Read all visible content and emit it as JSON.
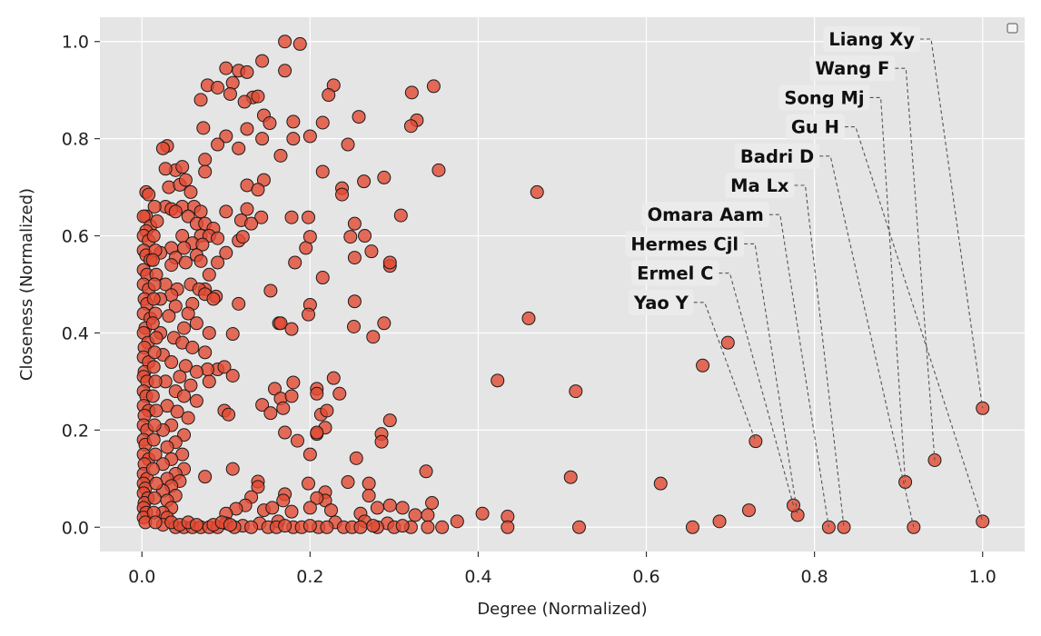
{
  "chart_data": {
    "type": "scatter",
    "title": "",
    "xlabel": "Degree (Normalized)",
    "ylabel": "Closeness (Normalized)",
    "xlim": [
      -0.05,
      1.05
    ],
    "ylim": [
      -0.05,
      1.05
    ],
    "xticks": [
      0.0,
      0.2,
      0.4,
      0.6,
      0.8,
      1.0
    ],
    "yticks": [
      0.0,
      0.2,
      0.4,
      0.6,
      0.8,
      1.0
    ],
    "xtick_labels": [
      "0.0",
      "0.2",
      "0.4",
      "0.6",
      "0.8",
      "1.0"
    ],
    "ytick_labels": [
      "0.0",
      "0.2",
      "0.4",
      "0.6",
      "0.8",
      "1.0"
    ],
    "grid": true,
    "legend": "top-right (empty)",
    "colors": {
      "background": "#e5e5e5",
      "grid": "#ffffff",
      "marker_fill": "#e24a33",
      "marker_edge": "#1a1a1a",
      "annotation_box": "#ececec",
      "leader_line": "#555555"
    },
    "annotations": [
      {
        "label": "Liang Xy",
        "x": 1.0,
        "y": 0.245
      },
      {
        "label": "Wang F",
        "x": 0.943,
        "y": 0.138
      },
      {
        "label": "Song Mj",
        "x": 0.908,
        "y": 0.093
      },
      {
        "label": "Gu H",
        "x": 1.0,
        "y": 0.012
      },
      {
        "label": "Badri D",
        "x": 0.918,
        "y": 0.0
      },
      {
        "label": "Ma Lx",
        "x": 0.835,
        "y": 0.0
      },
      {
        "label": "Omara Aam",
        "x": 0.817,
        "y": 0.0
      },
      {
        "label": "Hermes Cjl",
        "x": 0.78,
        "y": 0.025
      },
      {
        "label": "Ermel C",
        "x": 0.775,
        "y": 0.045
      },
      {
        "label": "Yao Y",
        "x": 0.73,
        "y": 0.177
      }
    ],
    "points": [
      [
        0.17,
        1.0
      ],
      [
        0.188,
        0.995
      ],
      [
        0.1,
        0.945
      ],
      [
        0.143,
        0.96
      ],
      [
        0.115,
        0.94
      ],
      [
        0.17,
        0.94
      ],
      [
        0.125,
        0.937
      ],
      [
        0.078,
        0.91
      ],
      [
        0.09,
        0.905
      ],
      [
        0.108,
        0.915
      ],
      [
        0.105,
        0.892
      ],
      [
        0.132,
        0.885
      ],
      [
        0.138,
        0.887
      ],
      [
        0.07,
        0.88
      ],
      [
        0.122,
        0.876
      ],
      [
        0.228,
        0.91
      ],
      [
        0.222,
        0.89
      ],
      [
        0.321,
        0.895
      ],
      [
        0.347,
        0.908
      ],
      [
        0.145,
        0.848
      ],
      [
        0.152,
        0.832
      ],
      [
        0.18,
        0.835
      ],
      [
        0.073,
        0.822
      ],
      [
        0.125,
        0.82
      ],
      [
        0.215,
        0.833
      ],
      [
        0.327,
        0.838
      ],
      [
        0.32,
        0.826
      ],
      [
        0.258,
        0.845
      ],
      [
        0.143,
        0.8
      ],
      [
        0.18,
        0.8
      ],
      [
        0.1,
        0.805
      ],
      [
        0.2,
        0.805
      ],
      [
        0.245,
        0.788
      ],
      [
        0.09,
        0.788
      ],
      [
        0.115,
        0.78
      ],
      [
        0.165,
        0.765
      ],
      [
        0.075,
        0.757
      ],
      [
        0.215,
        0.732
      ],
      [
        0.075,
        0.732
      ],
      [
        0.353,
        0.735
      ],
      [
        0.264,
        0.712
      ],
      [
        0.145,
        0.715
      ],
      [
        0.125,
        0.704
      ],
      [
        0.288,
        0.72
      ],
      [
        0.238,
        0.698
      ],
      [
        0.238,
        0.685
      ],
      [
        0.138,
        0.695
      ],
      [
        0.47,
        0.69
      ],
      [
        0.1,
        0.65
      ],
      [
        0.125,
        0.655
      ],
      [
        0.142,
        0.638
      ],
      [
        0.118,
        0.632
      ],
      [
        0.178,
        0.638
      ],
      [
        0.198,
        0.638
      ],
      [
        0.308,
        0.642
      ],
      [
        0.253,
        0.625
      ],
      [
        0.13,
        0.625
      ],
      [
        0.195,
        0.575
      ],
      [
        0.2,
        0.598
      ],
      [
        0.248,
        0.598
      ],
      [
        0.265,
        0.6
      ],
      [
        0.1,
        0.565
      ],
      [
        0.115,
        0.59
      ],
      [
        0.12,
        0.598
      ],
      [
        0.273,
        0.568
      ],
      [
        0.182,
        0.545
      ],
      [
        0.253,
        0.555
      ],
      [
        0.295,
        0.538
      ],
      [
        0.295,
        0.545
      ],
      [
        0.215,
        0.514
      ],
      [
        0.153,
        0.487
      ],
      [
        0.253,
        0.465
      ],
      [
        0.2,
        0.458
      ],
      [
        0.198,
        0.438
      ],
      [
        0.115,
        0.46
      ],
      [
        0.088,
        0.475
      ],
      [
        0.075,
        0.49
      ],
      [
        0.163,
        0.42
      ],
      [
        0.165,
        0.42
      ],
      [
        0.178,
        0.408
      ],
      [
        0.252,
        0.413
      ],
      [
        0.288,
        0.42
      ],
      [
        0.275,
        0.392
      ],
      [
        0.46,
        0.43
      ],
      [
        0.108,
        0.398
      ],
      [
        0.09,
        0.325
      ],
      [
        0.098,
        0.33
      ],
      [
        0.108,
        0.312
      ],
      [
        0.08,
        0.3
      ],
      [
        0.078,
        0.325
      ],
      [
        0.18,
        0.298
      ],
      [
        0.228,
        0.307
      ],
      [
        0.208,
        0.285
      ],
      [
        0.208,
        0.275
      ],
      [
        0.158,
        0.285
      ],
      [
        0.165,
        0.265
      ],
      [
        0.178,
        0.27
      ],
      [
        0.235,
        0.275
      ],
      [
        0.143,
        0.252
      ],
      [
        0.153,
        0.235
      ],
      [
        0.168,
        0.245
      ],
      [
        0.213,
        0.232
      ],
      [
        0.22,
        0.24
      ],
      [
        0.218,
        0.205
      ],
      [
        0.208,
        0.192
      ],
      [
        0.208,
        0.195
      ],
      [
        0.17,
        0.195
      ],
      [
        0.185,
        0.178
      ],
      [
        0.2,
        0.15
      ],
      [
        0.098,
        0.24
      ],
      [
        0.103,
        0.232
      ],
      [
        0.423,
        0.302
      ],
      [
        0.516,
        0.28
      ],
      [
        0.295,
        0.22
      ],
      [
        0.285,
        0.192
      ],
      [
        0.285,
        0.176
      ],
      [
        0.255,
        0.142
      ],
      [
        0.108,
        0.12
      ],
      [
        0.075,
        0.104
      ],
      [
        0.138,
        0.094
      ],
      [
        0.138,
        0.083
      ],
      [
        0.198,
        0.09
      ],
      [
        0.17,
        0.068
      ],
      [
        0.13,
        0.062
      ],
      [
        0.218,
        0.072
      ],
      [
        0.245,
        0.093
      ],
      [
        0.27,
        0.09
      ],
      [
        0.27,
        0.065
      ],
      [
        0.338,
        0.115
      ],
      [
        0.51,
        0.103
      ],
      [
        0.617,
        0.09
      ],
      [
        0.295,
        0.045
      ],
      [
        0.31,
        0.04
      ],
      [
        0.345,
        0.05
      ],
      [
        0.168,
        0.055
      ],
      [
        0.123,
        0.045
      ],
      [
        0.112,
        0.038
      ],
      [
        0.145,
        0.035
      ],
      [
        0.155,
        0.04
      ],
      [
        0.178,
        0.032
      ],
      [
        0.218,
        0.055
      ],
      [
        0.208,
        0.06
      ],
      [
        0.2,
        0.04
      ],
      [
        0.225,
        0.035
      ],
      [
        0.26,
        0.028
      ],
      [
        0.28,
        0.04
      ],
      [
        0.1,
        0.028
      ],
      [
        0.1,
        0.008
      ],
      [
        0.12,
        0.003
      ],
      [
        0.14,
        0.008
      ],
      [
        0.162,
        0.012
      ],
      [
        0.23,
        0.01
      ],
      [
        0.265,
        0.012
      ],
      [
        0.292,
        0.008
      ],
      [
        0.325,
        0.025
      ],
      [
        0.34,
        0.025
      ],
      [
        0.375,
        0.012
      ],
      [
        0.405,
        0.028
      ],
      [
        0.435,
        0.022
      ],
      [
        0.435,
        0.0
      ],
      [
        0.357,
        0.0
      ],
      [
        0.52,
        0.0
      ],
      [
        0.655,
        0.0
      ],
      [
        0.687,
        0.012
      ],
      [
        0.722,
        0.035
      ],
      [
        0.697,
        0.38
      ],
      [
        0.667,
        0.333
      ],
      [
        0.03,
        0.785
      ],
      [
        0.025,
        0.78
      ],
      [
        0.04,
        0.735
      ],
      [
        0.028,
        0.738
      ],
      [
        0.048,
        0.742
      ],
      [
        0.032,
        0.7
      ],
      [
        0.045,
        0.705
      ],
      [
        0.052,
        0.715
      ],
      [
        0.058,
        0.69
      ],
      [
        0.048,
        0.66
      ],
      [
        0.062,
        0.66
      ],
      [
        0.07,
        0.65
      ],
      [
        0.028,
        0.66
      ],
      [
        0.035,
        0.655
      ],
      [
        0.04,
        0.65
      ],
      [
        0.055,
        0.64
      ],
      [
        0.065,
        0.625
      ],
      [
        0.075,
        0.625
      ],
      [
        0.085,
        0.615
      ],
      [
        0.07,
        0.6
      ],
      [
        0.08,
        0.6
      ],
      [
        0.048,
        0.6
      ],
      [
        0.06,
        0.585
      ],
      [
        0.072,
        0.582
      ],
      [
        0.09,
        0.595
      ],
      [
        0.035,
        0.575
      ],
      [
        0.022,
        0.565
      ],
      [
        0.05,
        0.575
      ],
      [
        0.065,
        0.56
      ],
      [
        0.04,
        0.555
      ],
      [
        0.052,
        0.545
      ],
      [
        0.07,
        0.548
      ],
      [
        0.035,
        0.54
      ],
      [
        0.09,
        0.545
      ],
      [
        0.08,
        0.52
      ],
      [
        0.058,
        0.5
      ],
      [
        0.068,
        0.49
      ],
      [
        0.042,
        0.49
      ],
      [
        0.028,
        0.5
      ],
      [
        0.035,
        0.478
      ],
      [
        0.022,
        0.47
      ],
      [
        0.075,
        0.48
      ],
      [
        0.085,
        0.47
      ],
      [
        0.06,
        0.46
      ],
      [
        0.04,
        0.455
      ],
      [
        0.055,
        0.44
      ],
      [
        0.032,
        0.435
      ],
      [
        0.065,
        0.42
      ],
      [
        0.05,
        0.41
      ],
      [
        0.022,
        0.4
      ],
      [
        0.08,
        0.4
      ],
      [
        0.038,
        0.39
      ],
      [
        0.048,
        0.38
      ],
      [
        0.06,
        0.37
      ],
      [
        0.075,
        0.36
      ],
      [
        0.025,
        0.355
      ],
      [
        0.035,
        0.34
      ],
      [
        0.052,
        0.332
      ],
      [
        0.065,
        0.32
      ],
      [
        0.045,
        0.31
      ],
      [
        0.028,
        0.3
      ],
      [
        0.058,
        0.292
      ],
      [
        0.04,
        0.28
      ],
      [
        0.05,
        0.27
      ],
      [
        0.065,
        0.26
      ],
      [
        0.03,
        0.25
      ],
      [
        0.042,
        0.238
      ],
      [
        0.055,
        0.225
      ],
      [
        0.035,
        0.21
      ],
      [
        0.025,
        0.2
      ],
      [
        0.05,
        0.19
      ],
      [
        0.04,
        0.175
      ],
      [
        0.03,
        0.165
      ],
      [
        0.048,
        0.15
      ],
      [
        0.035,
        0.14
      ],
      [
        0.025,
        0.13
      ],
      [
        0.05,
        0.12
      ],
      [
        0.04,
        0.11
      ],
      [
        0.03,
        0.1
      ],
      [
        0.045,
        0.095
      ],
      [
        0.035,
        0.085
      ],
      [
        0.025,
        0.075
      ],
      [
        0.04,
        0.065
      ],
      [
        0.03,
        0.055
      ],
      [
        0.035,
        0.04
      ],
      [
        0.025,
        0.03
      ],
      [
        0.03,
        0.02
      ],
      [
        0.04,
        0.0
      ],
      [
        0.05,
        0.0
      ],
      [
        0.06,
        0.0
      ],
      [
        0.07,
        0.0
      ],
      [
        0.08,
        0.0
      ],
      [
        0.09,
        0.0
      ],
      [
        0.11,
        0.0
      ],
      [
        0.13,
        0.0
      ],
      [
        0.15,
        0.0
      ],
      [
        0.16,
        0.0
      ],
      [
        0.18,
        0.0
      ],
      [
        0.19,
        0.0
      ],
      [
        0.21,
        0.0
      ],
      [
        0.22,
        0.0
      ],
      [
        0.24,
        0.0
      ],
      [
        0.25,
        0.0
      ],
      [
        0.26,
        0.0
      ],
      [
        0.28,
        0.0
      ],
      [
        0.3,
        0.0
      ],
      [
        0.32,
        0.0
      ],
      [
        0.34,
        0.0
      ],
      [
        0.025,
        0.005
      ],
      [
        0.035,
        0.01
      ],
      [
        0.045,
        0.005
      ],
      [
        0.055,
        0.01
      ],
      [
        0.065,
        0.005
      ],
      [
        0.085,
        0.005
      ],
      [
        0.095,
        0.01
      ],
      [
        0.105,
        0.005
      ],
      [
        0.17,
        0.003
      ],
      [
        0.2,
        0.003
      ],
      [
        0.275,
        0.003
      ],
      [
        0.31,
        0.003
      ],
      [
        0.005,
        0.69
      ],
      [
        0.008,
        0.685
      ],
      [
        0.005,
        0.64
      ],
      [
        0.002,
        0.64
      ],
      [
        0.01,
        0.62
      ],
      [
        0.005,
        0.61
      ],
      [
        0.002,
        0.6
      ],
      [
        0.008,
        0.59
      ],
      [
        0.002,
        0.57
      ],
      [
        0.005,
        0.56
      ],
      [
        0.01,
        0.55
      ],
      [
        0.002,
        0.53
      ],
      [
        0.006,
        0.52
      ],
      [
        0.002,
        0.5
      ],
      [
        0.008,
        0.49
      ],
      [
        0.003,
        0.47
      ],
      [
        0.006,
        0.46
      ],
      [
        0.002,
        0.44
      ],
      [
        0.01,
        0.43
      ],
      [
        0.004,
        0.41
      ],
      [
        0.002,
        0.4
      ],
      [
        0.007,
        0.38
      ],
      [
        0.003,
        0.37
      ],
      [
        0.002,
        0.35
      ],
      [
        0.008,
        0.34
      ],
      [
        0.003,
        0.32
      ],
      [
        0.002,
        0.31
      ],
      [
        0.006,
        0.3
      ],
      [
        0.002,
        0.28
      ],
      [
        0.005,
        0.27
      ],
      [
        0.002,
        0.25
      ],
      [
        0.008,
        0.24
      ],
      [
        0.003,
        0.23
      ],
      [
        0.002,
        0.21
      ],
      [
        0.006,
        0.2
      ],
      [
        0.002,
        0.18
      ],
      [
        0.004,
        0.17
      ],
      [
        0.002,
        0.15
      ],
      [
        0.008,
        0.14
      ],
      [
        0.003,
        0.13
      ],
      [
        0.002,
        0.11
      ],
      [
        0.006,
        0.1
      ],
      [
        0.002,
        0.09
      ],
      [
        0.004,
        0.08
      ],
      [
        0.002,
        0.07
      ],
      [
        0.007,
        0.06
      ],
      [
        0.003,
        0.05
      ],
      [
        0.002,
        0.04
      ],
      [
        0.005,
        0.03
      ],
      [
        0.002,
        0.02
      ],
      [
        0.004,
        0.01
      ],
      [
        0.015,
        0.66
      ],
      [
        0.018,
        0.63
      ],
      [
        0.014,
        0.6
      ],
      [
        0.016,
        0.57
      ],
      [
        0.013,
        0.55
      ],
      [
        0.017,
        0.52
      ],
      [
        0.015,
        0.5
      ],
      [
        0.014,
        0.47
      ],
      [
        0.016,
        0.44
      ],
      [
        0.013,
        0.42
      ],
      [
        0.017,
        0.39
      ],
      [
        0.015,
        0.36
      ],
      [
        0.014,
        0.33
      ],
      [
        0.016,
        0.3
      ],
      [
        0.013,
        0.27
      ],
      [
        0.017,
        0.24
      ],
      [
        0.015,
        0.21
      ],
      [
        0.014,
        0.18
      ],
      [
        0.016,
        0.15
      ],
      [
        0.013,
        0.12
      ],
      [
        0.017,
        0.09
      ],
      [
        0.015,
        0.06
      ],
      [
        0.014,
        0.03
      ],
      [
        0.016,
        0.01
      ]
    ]
  }
}
